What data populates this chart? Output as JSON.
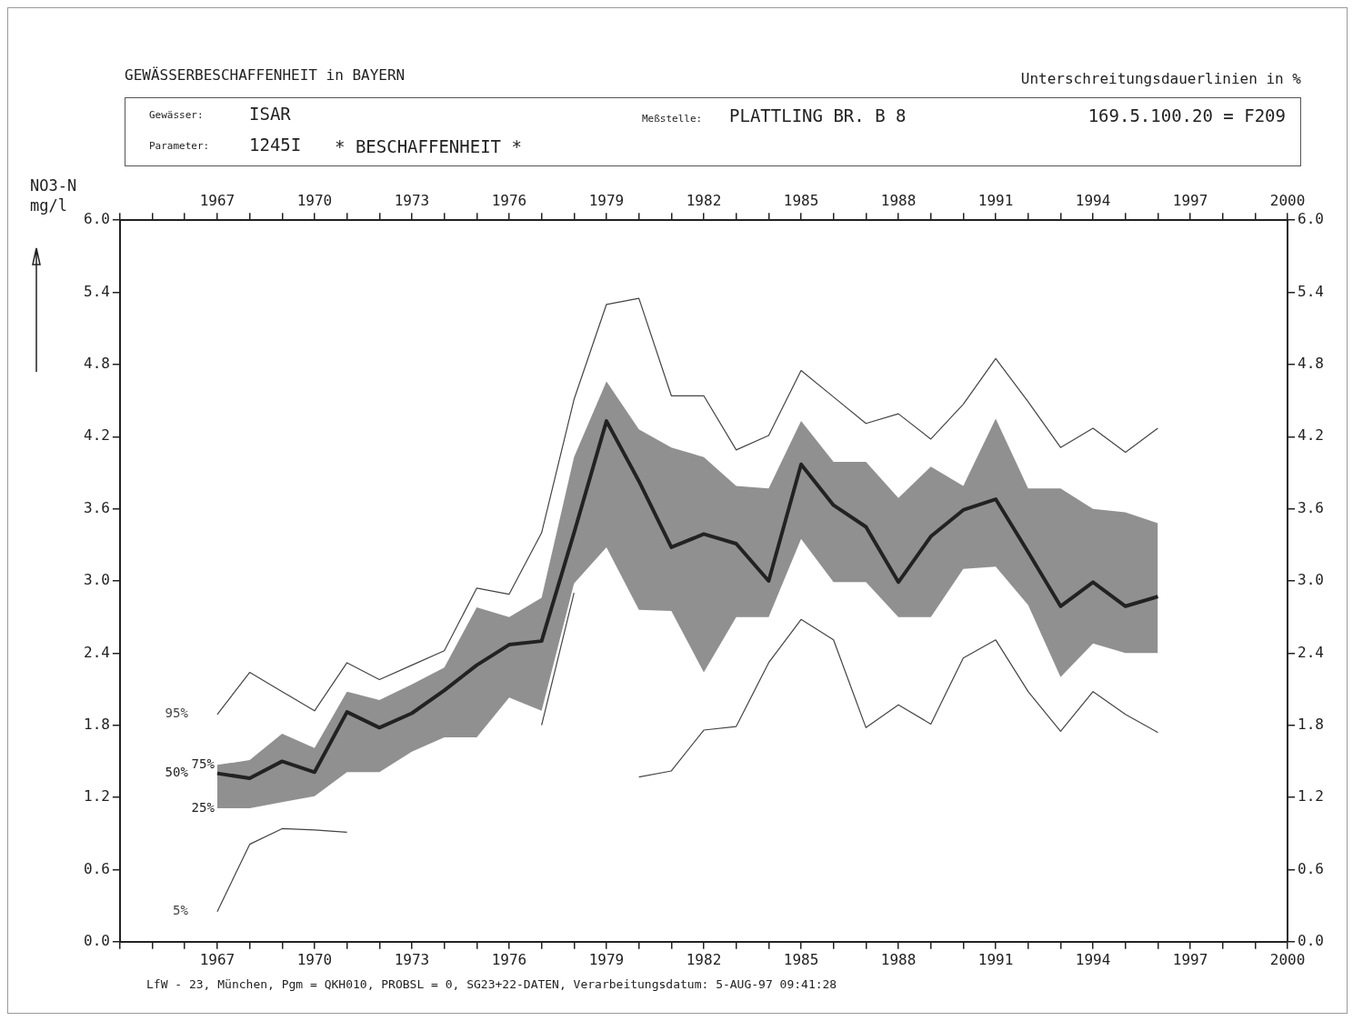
{
  "chart_data": {
    "type": "line",
    "title": "GEWÄSSERBESCHAFFENHEIT in BAYERN",
    "subtitle": "Unterschreitungsdauerlinien in %",
    "ylabel": "NO3-N\nmg/l",
    "x": [
      1967,
      1968,
      1969,
      1970,
      1971,
      1972,
      1973,
      1974,
      1975,
      1976,
      1977,
      1978,
      1979,
      1980,
      1981,
      1982,
      1983,
      1984,
      1985,
      1986,
      1987,
      1988,
      1989,
      1990,
      1991,
      1992,
      1993,
      1994,
      1995,
      1996
    ],
    "series": [
      {
        "name": "95%",
        "color": "#444444",
        "values": [
          1.89,
          2.24,
          2.08,
          1.92,
          2.32,
          2.18,
          2.3,
          2.42,
          2.94,
          2.89,
          3.4,
          4.51,
          5.3,
          5.35,
          4.54,
          4.54,
          4.09,
          4.21,
          4.75,
          4.53,
          4.31,
          4.39,
          4.18,
          4.47,
          4.85,
          4.49,
          4.11,
          4.27,
          4.07,
          4.27
        ]
      },
      {
        "name": "50%",
        "color": "#222222",
        "values": [
          1.4,
          1.36,
          1.5,
          1.41,
          1.91,
          1.78,
          1.9,
          2.09,
          2.3,
          2.47,
          2.5,
          3.4,
          4.33,
          3.83,
          3.28,
          3.39,
          3.31,
          3.0,
          3.97,
          3.63,
          3.45,
          2.99,
          3.37,
          3.59,
          3.68,
          3.24,
          2.79,
          2.99,
          2.79,
          2.87
        ],
        "lower": [
          1.11,
          1.11,
          1.16,
          1.21,
          1.41,
          1.41,
          1.58,
          1.7,
          1.7,
          2.03,
          1.92,
          2.98,
          3.28,
          2.76,
          2.75,
          2.24,
          2.7,
          2.7,
          3.35,
          2.99,
          2.99,
          2.7,
          2.7,
          3.1,
          3.12,
          2.8,
          2.2,
          2.48,
          2.4,
          2.4
        ],
        "upper": [
          1.47,
          1.51,
          1.73,
          1.61,
          2.08,
          2.01,
          2.14,
          2.28,
          2.78,
          2.7,
          2.86,
          4.03,
          4.66,
          4.26,
          4.11,
          4.03,
          3.79,
          3.77,
          4.33,
          3.99,
          3.99,
          3.69,
          3.95,
          3.79,
          4.35,
          3.77,
          3.77,
          3.6,
          3.57,
          3.48
        ]
      },
      {
        "name": "5%",
        "color": "#444444",
        "values": [
          0.25,
          0.81,
          0.94,
          0.93,
          0.91,
          null,
          null,
          null,
          null,
          null,
          1.8,
          2.9,
          null,
          1.37,
          1.42,
          1.76,
          1.79,
          2.32,
          2.68,
          2.51,
          1.78,
          1.97,
          1.81,
          2.36,
          2.51,
          2.08,
          1.75,
          2.08,
          1.89,
          1.74
        ]
      }
    ],
    "xlim": [
      1964,
      2000
    ],
    "xticks": [
      {
        "value": 1964,
        "label": null
      },
      {
        "value": 1965,
        "label": null
      },
      {
        "value": 1966,
        "label": null
      },
      1967,
      {
        "value": 1968,
        "label": null
      },
      {
        "value": 1969,
        "label": null
      },
      1970,
      {
        "value": 1971,
        "label": null
      },
      {
        "value": 1972,
        "label": null
      },
      1973,
      {
        "value": 1974,
        "label": null
      },
      {
        "value": 1975,
        "label": null
      },
      1976,
      {
        "value": 1977,
        "label": null
      },
      {
        "value": 1978,
        "label": null
      },
      1979,
      {
        "value": 1980,
        "label": null
      },
      {
        "value": 1981,
        "label": null
      },
      1982,
      {
        "value": 1983,
        "label": null
      },
      {
        "value": 1984,
        "label": null
      },
      1985,
      {
        "value": 1986,
        "label": null
      },
      {
        "value": 1987,
        "label": null
      },
      1988,
      {
        "value": 1989,
        "label": null
      },
      {
        "value": 1990,
        "label": null
      },
      1991,
      {
        "value": 1992,
        "label": null
      },
      {
        "value": 1993,
        "label": null
      },
      1994,
      {
        "value": 1995,
        "label": null
      },
      {
        "value": 1996,
        "label": null
      },
      1997,
      {
        "value": 1998,
        "label": null
      },
      {
        "value": 1999,
        "label": null
      },
      2000
    ],
    "x2lim": [
      1964,
      2000
    ],
    "x2ticks": [
      {
        "value": 1964,
        "label": null
      },
      {
        "value": 1965,
        "label": null
      },
      {
        "value": 1966,
        "label": null
      },
      1967,
      {
        "value": 1968,
        "label": null
      },
      {
        "value": 1969,
        "label": null
      },
      1970,
      {
        "value": 1971,
        "label": null
      },
      {
        "value": 1972,
        "label": null
      },
      1973,
      {
        "value": 1974,
        "label": null
      },
      {
        "value": 1975,
        "label": null
      },
      1976,
      {
        "value": 1977,
        "label": null
      },
      {
        "value": 1978,
        "label": null
      },
      1979,
      {
        "value": 1980,
        "label": null
      },
      {
        "value": 1981,
        "label": null
      },
      1982,
      {
        "value": 1983,
        "label": null
      },
      {
        "value": 1984,
        "label": null
      },
      1985,
      {
        "value": 1986,
        "label": null
      },
      {
        "value": 1987,
        "label": null
      },
      1988,
      {
        "value": 1989,
        "label": null
      },
      {
        "value": 1990,
        "label": null
      },
      1991,
      {
        "value": 1992,
        "label": null
      },
      {
        "value": 1993,
        "label": null
      },
      1994,
      {
        "value": 1995,
        "label": null
      },
      {
        "value": 1996,
        "label": null
      },
      1997,
      {
        "value": 1998,
        "label": null
      },
      {
        "value": 1999,
        "label": null
      },
      2000
    ],
    "ylim": [
      0,
      6
    ],
    "yticks": [
      {
        "value": 0,
        "label": "0.0"
      },
      0.6,
      1.2,
      1.8,
      2.4,
      {
        "value": 3,
        "label": "3.0"
      },
      3.6,
      4.2,
      4.8,
      5.4,
      {
        "value": 6,
        "label": "6.0"
      }
    ],
    "y2lim": [
      0,
      6
    ],
    "y2ticks": [
      {
        "value": 0,
        "label": "0.0"
      },
      0.6,
      1.2,
      1.8,
      2.4,
      {
        "value": 3,
        "label": "3.0"
      },
      3.6,
      4.2,
      4.8,
      5.4,
      {
        "value": 6,
        "label": "6.0"
      }
    ],
    "annotations": [
      "Gewässer:",
      "ISAR",
      "Meßstelle:",
      "PLATTLING BR. B 8",
      "169.5.100.20 = F209",
      "Parameter:",
      "1245I",
      "* BESCHAFFENHEIT *",
      "LfW - 23, München, Pgm = QKH010, PROBSL = 0, SG23+22-DATEN, Verarbeitungsdatum:  5-AUG-97   09:41:28",
      {
        "text": "75%",
        "x": 1967,
        "y": 1.47
      },
      {
        "text": "25%",
        "x": 1967,
        "y": 1.11
      }
    ],
    "legend": false,
    "marker": "none",
    "line_style": "solid"
  }
}
